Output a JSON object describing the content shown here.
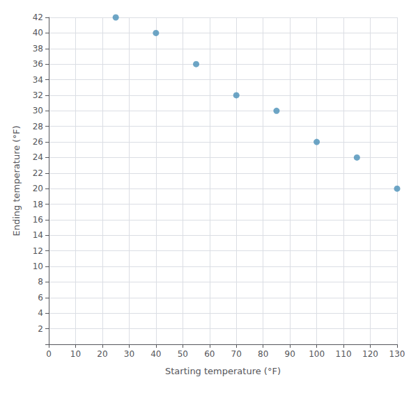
{
  "chart_data": {
    "type": "scatter",
    "x": [
      25,
      40,
      55,
      70,
      85,
      100,
      115,
      130
    ],
    "y": [
      42,
      40,
      36,
      32,
      30,
      26,
      24,
      20
    ],
    "xlabel": "Starting temperature (°F)",
    "ylabel": "Ending temperature (°F)",
    "xlim": [
      0,
      130
    ],
    "ylim": [
      0,
      42
    ],
    "xticks": [
      0,
      10,
      20,
      30,
      40,
      50,
      60,
      70,
      80,
      90,
      100,
      110,
      120,
      130
    ],
    "yticks": [
      2,
      4,
      6,
      8,
      10,
      12,
      14,
      16,
      18,
      20,
      22,
      24,
      26,
      28,
      30,
      32,
      34,
      36,
      38,
      40,
      42
    ],
    "color": "#4a90b8",
    "grid": true
  }
}
